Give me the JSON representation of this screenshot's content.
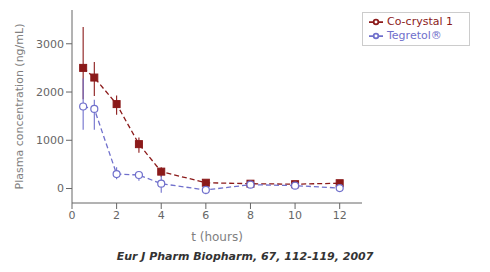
{
  "chart_data": {
    "type": "line",
    "x": [
      0.5,
      1.0,
      2.0,
      3.0,
      4.0,
      6.0,
      8.0,
      10.0,
      12.0
    ],
    "series": [
      {
        "name": "Co-crystal 1",
        "color": "#8B1A1A",
        "marker": "square",
        "line_style": "dashed",
        "values": [
          2500,
          2300,
          1750,
          920,
          350,
          120,
          100,
          90,
          110
        ],
        "yerr_low": [
          650,
          380,
          220,
          180,
          110,
          55,
          35,
          25,
          35
        ],
        "yerr_high": [
          850,
          320,
          180,
          140,
          90,
          55,
          35,
          25,
          35
        ]
      },
      {
        "name": "Tegretol®",
        "color": "#7070CC",
        "marker": "circle",
        "line_style": "dashed",
        "values": [
          1700,
          1650,
          300,
          280,
          100,
          -30,
          80,
          60,
          10
        ],
        "yerr_low": [
          480,
          430,
          110,
          120,
          190,
          90,
          28,
          18,
          8
        ],
        "yerr_high": [
          580,
          190,
          140,
          70,
          240,
          55,
          28,
          18,
          8
        ]
      }
    ],
    "xlabel": "t (hours)",
    "ylabel": "Plasma concentration (ng/mL)",
    "xlim": [
      0,
      13
    ],
    "ylim": [
      -300,
      3700
    ],
    "xticks": [
      0,
      2,
      4,
      6,
      8,
      10,
      12
    ],
    "yticks": [
      0,
      1000,
      2000,
      3000
    ],
    "legend": "upper right",
    "grid": false,
    "annotations": [
      "Eur J Pharm Biopharm, 67, 112-119, 2007"
    ]
  }
}
